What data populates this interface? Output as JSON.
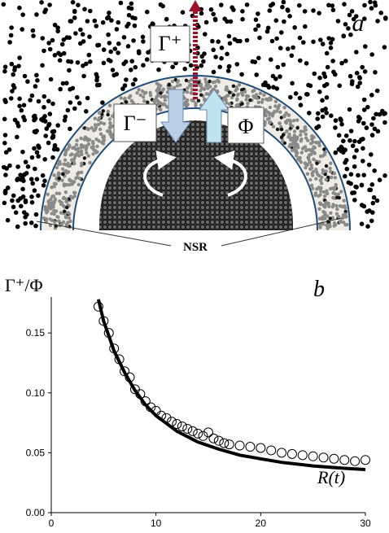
{
  "panel_a": {
    "label": "a",
    "boxes": [
      "Γ⁺",
      "Γ⁻",
      "Φ"
    ],
    "annotation": "NSR"
  },
  "chart_data": {
    "type": "scatter",
    "label": "b",
    "y_label": "Γ⁺/Φ",
    "x_label": "R(t)",
    "xlim": [
      0,
      30
    ],
    "xticks": [
      0,
      10,
      20,
      30
    ],
    "ylim": [
      0,
      0.18
    ],
    "yticks": [
      {
        "value": 0,
        "label": "0.00"
      },
      0.05,
      {
        "value": 0.1,
        "label": "0.10"
      },
      0.15
    ],
    "series": [
      {
        "style": "markers",
        "color": "#000000",
        "x": [
          4.5,
          5,
          5.5,
          6,
          6.5,
          7,
          7.5,
          8,
          8.5,
          9,
          9.5,
          10,
          10.5,
          11,
          11.5,
          12,
          12.5,
          13,
          13.5,
          14,
          14.5,
          15,
          15.5,
          16,
          16.5,
          17,
          18,
          19,
          20,
          21,
          22,
          23,
          24,
          25,
          26,
          27,
          28,
          29,
          30
        ],
        "values": [
          0.172,
          0.16,
          0.15,
          0.137,
          0.128,
          0.118,
          0.113,
          0.103,
          0.099,
          0.093,
          0.088,
          0.085,
          0.081,
          0.079,
          0.076,
          0.074,
          0.072,
          0.07,
          0.068,
          0.066,
          0.064,
          0.067,
          0.062,
          0.06,
          0.058,
          0.057,
          0.056,
          0.055,
          0.054,
          0.052,
          0.05,
          0.049,
          0.048,
          0.047,
          0.046,
          0.045,
          0.044,
          0.043,
          0.044
        ]
      },
      {
        "style": "line",
        "color": "#000000",
        "x": [
          4.5,
          5,
          6,
          7,
          8,
          9,
          10,
          12,
          14,
          16,
          18,
          20,
          22,
          25,
          28,
          30
        ],
        "values": [
          0.178,
          0.16,
          0.135,
          0.117,
          0.102,
          0.09,
          0.081,
          0.068,
          0.059,
          0.053,
          0.048,
          0.045,
          0.042,
          0.039,
          0.037,
          0.036
        ]
      }
    ]
  }
}
